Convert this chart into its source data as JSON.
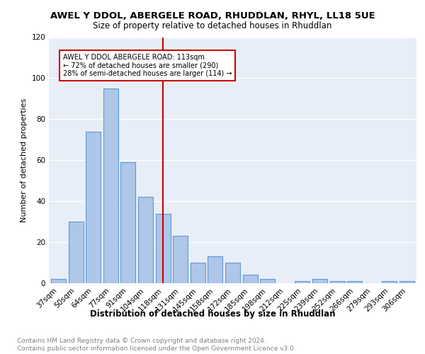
{
  "title1": "AWEL Y DDOL, ABERGELE ROAD, RHUDDLAN, RHYL, LL18 5UE",
  "title2": "Size of property relative to detached houses in Rhuddlan",
  "xlabel": "Distribution of detached houses by size in Rhuddlan",
  "ylabel": "Number of detached properties",
  "bin_labels": [
    "37sqm",
    "50sqm",
    "64sqm",
    "77sqm",
    "91sqm",
    "104sqm",
    "118sqm",
    "131sqm",
    "145sqm",
    "158sqm",
    "172sqm",
    "185sqm",
    "198sqm",
    "212sqm",
    "225sqm",
    "239sqm",
    "252sqm",
    "266sqm",
    "279sqm",
    "293sqm",
    "306sqm"
  ],
  "bar_values": [
    2,
    30,
    74,
    95,
    59,
    42,
    34,
    23,
    10,
    13,
    10,
    4,
    2,
    0,
    1,
    2,
    1,
    1,
    0,
    1,
    1
  ],
  "bar_color": "#aec6e8",
  "bar_edge_color": "#5b9bd5",
  "vline_x": 6.0,
  "vline_color": "#cc0000",
  "annotation_text": "AWEL Y DDOL ABERGELE ROAD: 113sqm\n← 72% of detached houses are smaller (290)\n28% of semi-detached houses are larger (114) →",
  "annotation_box_color": "#cc0000",
  "ylim": [
    0,
    120
  ],
  "yticks": [
    0,
    20,
    40,
    60,
    80,
    100,
    120
  ],
  "footnote": "Contains HM Land Registry data © Crown copyright and database right 2024.\nContains public sector information licensed under the Open Government Licence v3.0.",
  "bg_color": "#e8eef7",
  "title_fontsize": 9.5,
  "subtitle_fontsize": 8.5,
  "ylabel_fontsize": 8,
  "tick_fontsize": 7.5,
  "xlabel_fontsize": 8.5,
  "footnote_fontsize": 6.5
}
